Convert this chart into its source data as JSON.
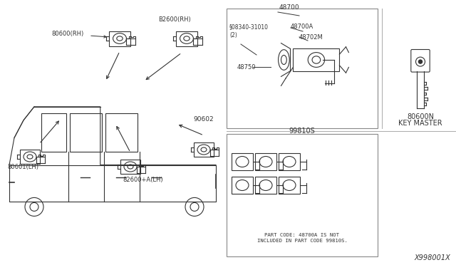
{
  "bg_color": "#ffffff",
  "diagram_color": "#333333",
  "title_x": "X998001X",
  "labels": {
    "80600RH": "80600(RH)",
    "B2600RH": "B2600(RH)",
    "80601LH": "80601(LH)",
    "82600ALH": "82600+A(LH)",
    "90602": "90602",
    "48700": "48700",
    "48700A": "48700A",
    "48702M": "48702M",
    "48750": "48750",
    "08340": "§08340-31010\n(2)",
    "99810S": "99810S",
    "80600N": "80600N",
    "key_master": "KEY MASTER",
    "part_note": "PART CODE: 48700A IS NOT\nINCLUDED IN PART CODE 99810S."
  }
}
